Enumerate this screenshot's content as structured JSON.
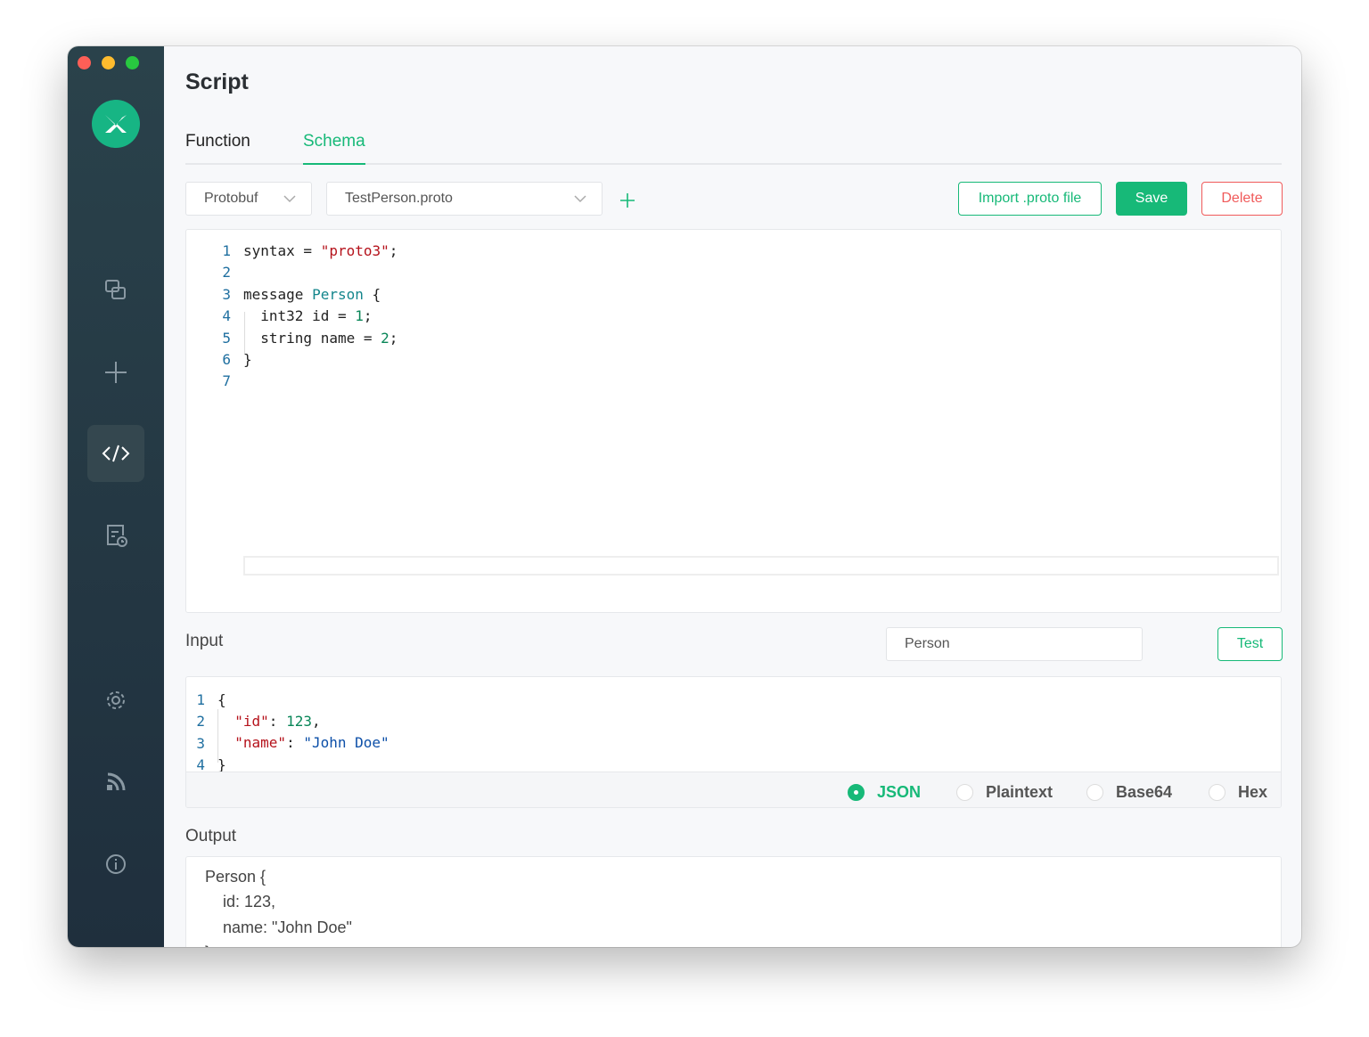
{
  "window": {
    "title": "Script"
  },
  "colors": {
    "accent": "#17b978",
    "danger": "#f05a5a",
    "sidebar": "#263b47"
  },
  "sidebar": {
    "items": [
      {
        "icon": "copy-icon"
      },
      {
        "icon": "plus-icon"
      },
      {
        "icon": "code-icon",
        "active": true
      },
      {
        "icon": "scheduled-document-icon"
      },
      {
        "icon": "gear-icon"
      },
      {
        "icon": "rss-icon"
      },
      {
        "icon": "info-icon"
      }
    ]
  },
  "tabs": [
    {
      "label": "Function"
    },
    {
      "label": "Schema",
      "active": true
    }
  ],
  "toolbar": {
    "format": "Protobuf",
    "file": "TestPerson.proto",
    "import_label": "Import .proto file",
    "save_label": "Save",
    "delete_label": "Delete"
  },
  "schema_code": {
    "line_numbers": [
      "1",
      "2",
      "3",
      "4",
      "5",
      "6",
      "7"
    ]
  },
  "input": {
    "label": "Input",
    "message_type": "Person",
    "test_label": "Test",
    "line_numbers": [
      "1",
      "2",
      "3",
      "4"
    ],
    "formats": [
      {
        "label": "JSON",
        "selected": true
      },
      {
        "label": "Plaintext"
      },
      {
        "label": "Base64"
      },
      {
        "label": "Hex"
      }
    ]
  },
  "output": {
    "label": "Output",
    "lines": [
      "Person {",
      "id: 123,",
      "name: \"John Doe\"",
      "}"
    ]
  }
}
